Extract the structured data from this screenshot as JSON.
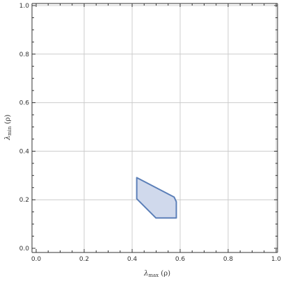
{
  "chart_data": {
    "type": "area",
    "xlabel": {
      "main": "λ",
      "sub": "max",
      "rest": " (ρ)"
    },
    "ylabel": {
      "main": "λ",
      "sub": "min",
      "rest": " (ρ)"
    },
    "xlim": [
      0,
      1
    ],
    "ylim": [
      0,
      1
    ],
    "x_ticks": [
      0.0,
      0.2,
      0.4,
      0.6,
      0.8,
      1.0
    ],
    "y_ticks": [
      0.0,
      0.2,
      0.4,
      0.6,
      0.8,
      1.0
    ],
    "x_tick_labels": [
      "0.0",
      "0.2",
      "0.4",
      "0.6",
      "0.8",
      "1.0"
    ],
    "y_tick_labels": [
      "0.0",
      "0.2",
      "0.4",
      "0.6",
      "0.8",
      "1.0"
    ],
    "grid": true,
    "series": [
      {
        "fill": "#d0d9ec",
        "stroke": "#5b7fb8",
        "points": [
          [
            0.419,
            0.291
          ],
          [
            0.575,
            0.211
          ],
          [
            0.584,
            0.192
          ],
          [
            0.584,
            0.125
          ],
          [
            0.499,
            0.125
          ],
          [
            0.419,
            0.204
          ]
        ]
      }
    ],
    "colors": {
      "grid": "#cccccc",
      "axis": "#333333"
    }
  }
}
